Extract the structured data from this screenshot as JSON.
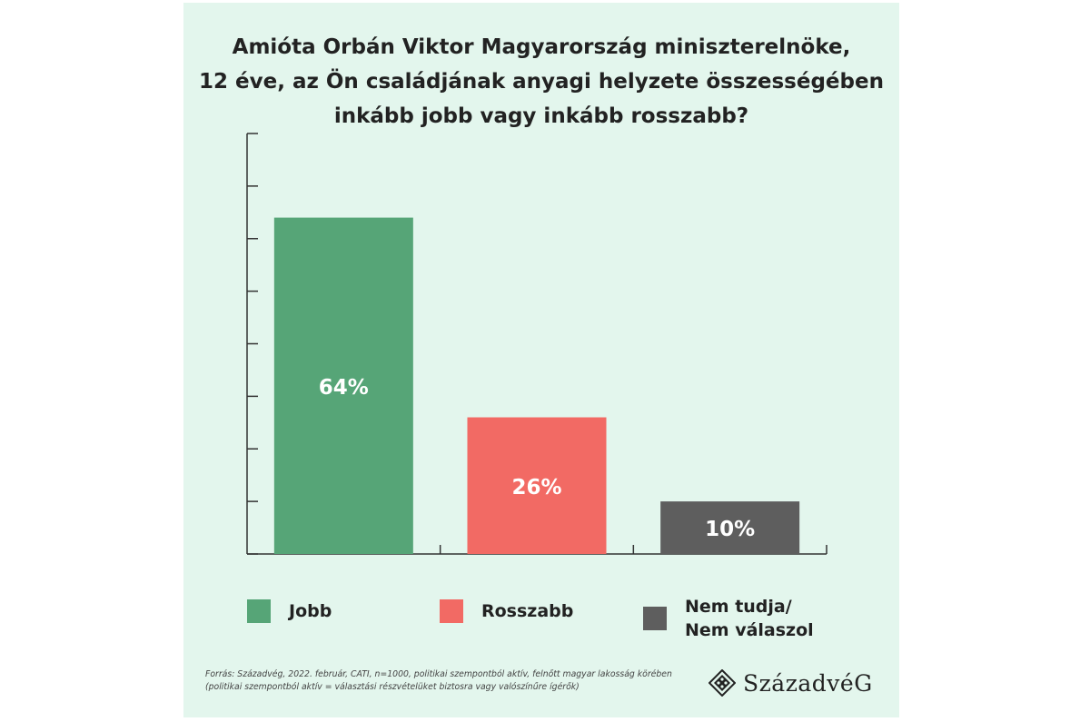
{
  "title_lines": [
    "Amióta Orbán Viktor Magyarország miniszterelnöke,",
    "12 éve, az Ön családjának anyagi helyzete összességében",
    "inkább jobb vagy inkább rosszabb?"
  ],
  "chart_data": {
    "type": "bar",
    "title": "Amióta Orbán Viktor Magyarország miniszterelnöke, 12 éve, az Ön családjának anyagi helyzete összességében inkább jobb vagy inkább rosszabb?",
    "categories": [
      "Jobb",
      "Rosszabb",
      "Nem tudja/Nem válaszol"
    ],
    "values": [
      64,
      26,
      10
    ],
    "data_labels": [
      "64%",
      "26%",
      "10%"
    ],
    "colors": [
      "#56a577",
      "#f26a64",
      "#5e5e5e"
    ],
    "ylim": [
      0,
      80
    ],
    "ytick_count": 8,
    "xlabel": "",
    "ylabel": "",
    "grid": false,
    "legend_position": "bottom"
  },
  "legend": [
    {
      "lines": [
        "Jobb"
      ],
      "color": "#56a577"
    },
    {
      "lines": [
        "Rosszabb"
      ],
      "color": "#f26a64"
    },
    {
      "lines": [
        "Nem tudja/",
        "Nem válaszol"
      ],
      "color": "#5e5e5e"
    }
  ],
  "source_lines": [
    "Forrás: Századvég, 2022. február, CATI, n=1000, politikai szempontból aktív, felnőtt magyar lakosság körében",
    "(politikai szempontból aktív = választási részvételüket biztosra vagy valószínűre ígérők)"
  ],
  "logo": {
    "text": "SzázadvéG",
    "mark_icon": "diamond-dots-icon"
  },
  "colors": {
    "background": "#e3f6ed",
    "text": "#222222",
    "axis": "#333333",
    "bar_label": "#ffffff"
  }
}
